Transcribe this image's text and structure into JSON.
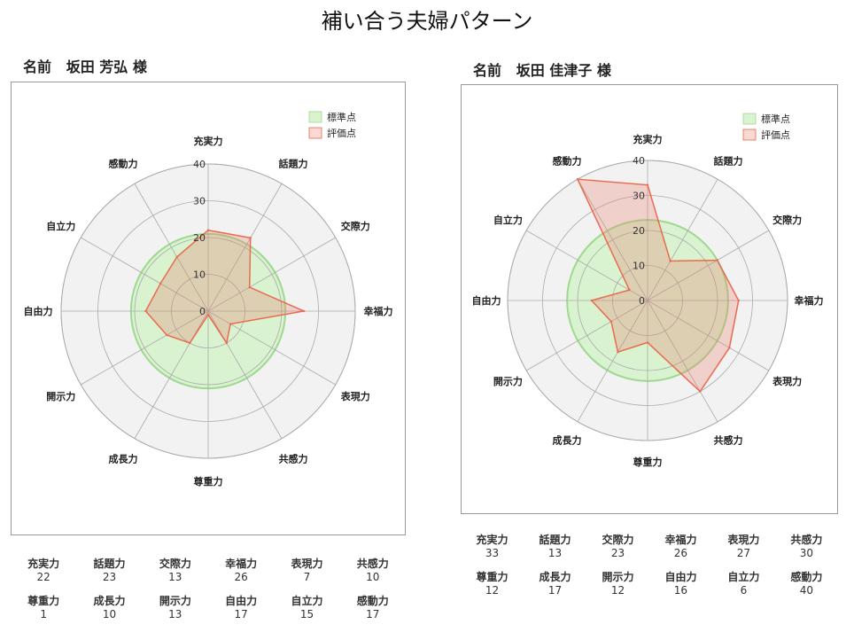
{
  "page_title": "補い合う夫婦パターン",
  "colors": {
    "standard_fill": "#d9f2d0",
    "standard_stroke": "#9fd98f",
    "eval_fill": "rgba(233,130,110,0.30)",
    "eval_stroke": "#ea6a50",
    "disc_fill": "#f2f2f2",
    "grid": "#aaaaaa"
  },
  "panels": [
    {
      "name_label": "名前",
      "person_name": "坂田 芳弘",
      "honorific": "様",
      "scores": [
        {
          "label": "充実力",
          "value": "22"
        },
        {
          "label": "話題力",
          "value": "23"
        },
        {
          "label": "交際力",
          "value": "13"
        },
        {
          "label": "幸福力",
          "value": "26"
        },
        {
          "label": "表現力",
          "value": "7"
        },
        {
          "label": "共感力",
          "value": "10"
        },
        {
          "label": "尊重力",
          "value": "1"
        },
        {
          "label": "成長力",
          "value": "10"
        },
        {
          "label": "開示力",
          "value": "13"
        },
        {
          "label": "自由力",
          "value": "17"
        },
        {
          "label": "自立力",
          "value": "15"
        },
        {
          "label": "感動力",
          "value": "17"
        }
      ]
    },
    {
      "name_label": "名前",
      "person_name": "坂田 佳津子",
      "honorific": "様",
      "scores": [
        {
          "label": "充実力",
          "value": "33"
        },
        {
          "label": "話題力",
          "value": "13"
        },
        {
          "label": "交際力",
          "value": "23"
        },
        {
          "label": "幸福力",
          "value": "26"
        },
        {
          "label": "表現力",
          "value": "27"
        },
        {
          "label": "共感力",
          "value": "30"
        },
        {
          "label": "尊重力",
          "value": "12"
        },
        {
          "label": "成長力",
          "value": "17"
        },
        {
          "label": "開示力",
          "value": "12"
        },
        {
          "label": "自由力",
          "value": "16"
        },
        {
          "label": "自立力",
          "value": "6"
        },
        {
          "label": "感動力",
          "value": "40"
        }
      ]
    }
  ],
  "chart_data": [
    {
      "type": "radar",
      "categories": [
        "充実力",
        "話題力",
        "交際力",
        "幸福力",
        "表現力",
        "共感力",
        "尊重力",
        "成長力",
        "開示力",
        "自由力",
        "自立力",
        "感動力"
      ],
      "ticks": [
        "0",
        "10",
        "20",
        "30",
        "40"
      ],
      "rmax": 40,
      "legend_position": "top-right",
      "series": [
        {
          "name": "標準点",
          "values": [
            21,
            21,
            21,
            21,
            21,
            21,
            21,
            21,
            21,
            21,
            21,
            21
          ]
        },
        {
          "name": "評価点",
          "values": [
            22,
            23,
            13,
            26,
            7,
            10,
            1,
            10,
            13,
            17,
            15,
            17
          ]
        }
      ]
    },
    {
      "type": "radar",
      "categories": [
        "充実力",
        "話題力",
        "交際力",
        "幸福力",
        "表現力",
        "共感力",
        "尊重力",
        "成長力",
        "開示力",
        "自由力",
        "自立力",
        "感動力"
      ],
      "ticks": [
        "0",
        "10",
        "20",
        "30",
        "40"
      ],
      "rmax": 40,
      "legend_position": "top-right",
      "series": [
        {
          "name": "標準点",
          "values": [
            23,
            23,
            23,
            23,
            23,
            23,
            23,
            23,
            23,
            23,
            23,
            23
          ]
        },
        {
          "name": "評価点",
          "values": [
            33,
            13,
            23,
            26,
            27,
            30,
            12,
            17,
            12,
            16,
            6,
            40
          ]
        }
      ]
    }
  ]
}
